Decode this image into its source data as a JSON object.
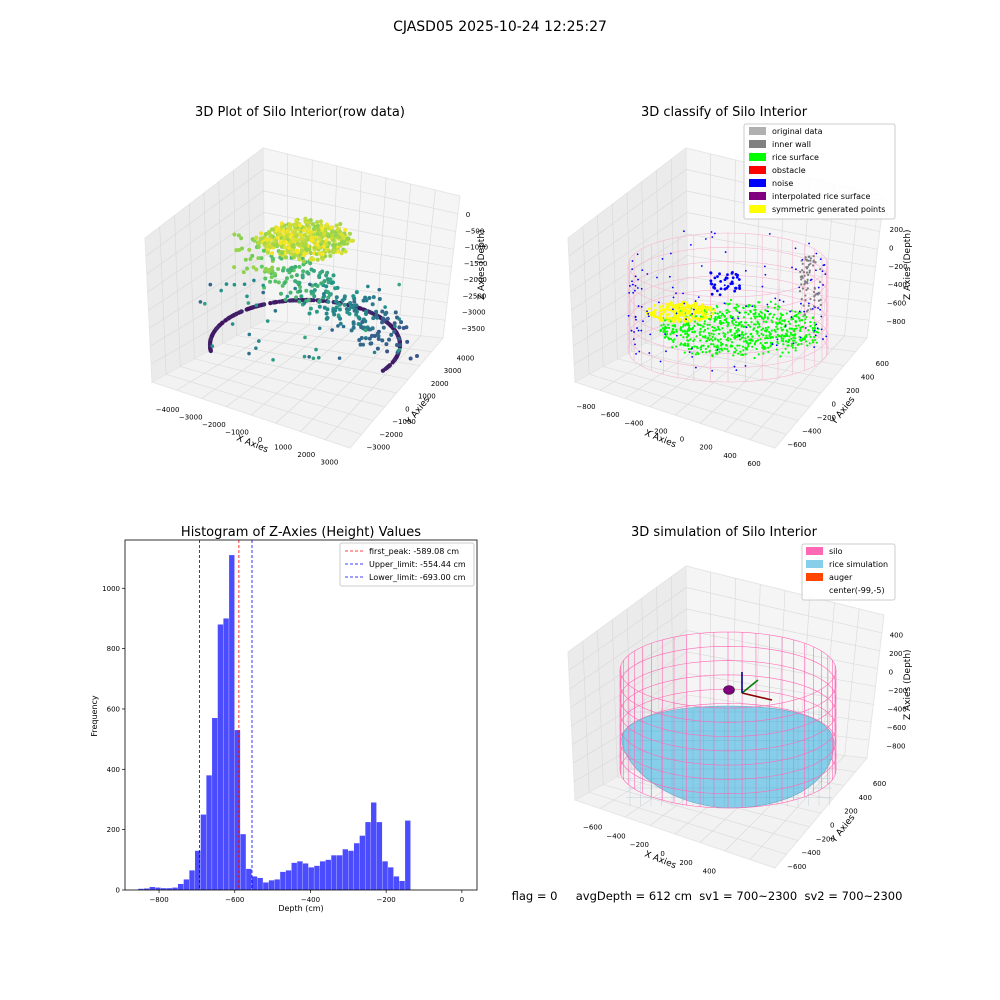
{
  "suptitle": "CJASD05 2025-10-24 12:25:27",
  "status_line": "flag = 0     avgDepth = 612 cm  sv1 = 700~2300  sv2 = 700~2300",
  "colors": {
    "hist_bar": "#0000ff",
    "first_peak": "#ff0000",
    "limits": "#0000ff",
    "silo": "#ff69b4",
    "rice_simulation": "#87ceeb",
    "auger": "#ff4500",
    "original_data": "#b0b0b0",
    "inner_wall": "#808080",
    "rice_surface": "#00ff00",
    "obstacle": "#ff0000",
    "noise": "#0000ff",
    "interpolated_rice_surface": "#800080",
    "symmetric_generated_points": "#ffff00"
  },
  "chart_data": [
    {
      "type": "scatter",
      "projection": "3d",
      "title": "3D Plot of Silo Interior(row data)",
      "xlabel": "X Axies",
      "ylabel": "Y Axies",
      "zlabel": "Z Axies (Depth)",
      "xticks": [
        "−4000",
        "−3000",
        "−2000",
        "−1000",
        "0",
        "1000",
        "2000",
        "3000"
      ],
      "yticks": [
        "−3000",
        "−2000",
        "−1000",
        "0",
        "1000",
        "2000",
        "3000",
        "4000"
      ],
      "zticks": [
        "0",
        "−500",
        "−1000",
        "−1500",
        "−2000",
        "−2500",
        "−3000",
        "−3500"
      ],
      "colormap": "viridis",
      "grid": true
    },
    {
      "type": "scatter",
      "projection": "3d",
      "title": "3D classify of Silo Interior",
      "xlabel": "X Axies",
      "ylabel": "Y Axies",
      "zlabel": "Z Axies (Depth)",
      "xticks": [
        "−800",
        "−600",
        "−400",
        "−200",
        "0",
        "200",
        "400",
        "600"
      ],
      "yticks": [
        "−600",
        "−400",
        "−200",
        "0",
        "200",
        "400",
        "600"
      ],
      "zticks": [
        "200",
        "0",
        "−200",
        "−400",
        "−600",
        "−800"
      ],
      "legend_position": "top-right",
      "legend": [
        {
          "label": "original data",
          "color": "#b0b0b0"
        },
        {
          "label": "inner wall",
          "color": "#808080"
        },
        {
          "label": "rice surface",
          "color": "#00ff00"
        },
        {
          "label": "obstacle",
          "color": "#ff0000"
        },
        {
          "label": "noise",
          "color": "#0000ff"
        },
        {
          "label": "interpolated rice surface",
          "color": "#800080"
        },
        {
          "label": "symmetric generated points",
          "color": "#ffff00"
        }
      ],
      "grid": true
    },
    {
      "type": "bar",
      "title": "Histogram of Z-Axies (Height) Values",
      "xlabel": "Depth (cm)",
      "ylabel": "Frequency",
      "xlim": [
        -890,
        40
      ],
      "ylim": [
        0,
        1160
      ],
      "xticks": [
        -800,
        -600,
        -400,
        -200,
        0
      ],
      "yticks": [
        0,
        200,
        400,
        600,
        800,
        1000
      ],
      "bin_width": 15,
      "bins": [
        {
          "x": -855,
          "y": 4
        },
        {
          "x": -840,
          "y": 5
        },
        {
          "x": -825,
          "y": 10
        },
        {
          "x": -810,
          "y": 8
        },
        {
          "x": -795,
          "y": 6
        },
        {
          "x": -780,
          "y": 6
        },
        {
          "x": -765,
          "y": 8
        },
        {
          "x": -750,
          "y": 20
        },
        {
          "x": -735,
          "y": 35
        },
        {
          "x": -720,
          "y": 65
        },
        {
          "x": -705,
          "y": 130
        },
        {
          "x": -690,
          "y": 250
        },
        {
          "x": -675,
          "y": 380
        },
        {
          "x": -660,
          "y": 570
        },
        {
          "x": -645,
          "y": 880
        },
        {
          "x": -630,
          "y": 900
        },
        {
          "x": -615,
          "y": 1110
        },
        {
          "x": -600,
          "y": 530
        },
        {
          "x": -585,
          "y": 185
        },
        {
          "x": -570,
          "y": 70
        },
        {
          "x": -555,
          "y": 45
        },
        {
          "x": -540,
          "y": 40
        },
        {
          "x": -525,
          "y": 25
        },
        {
          "x": -510,
          "y": 32
        },
        {
          "x": -495,
          "y": 35
        },
        {
          "x": -480,
          "y": 60
        },
        {
          "x": -465,
          "y": 65
        },
        {
          "x": -450,
          "y": 90
        },
        {
          "x": -435,
          "y": 95
        },
        {
          "x": -420,
          "y": 88
        },
        {
          "x": -405,
          "y": 75
        },
        {
          "x": -390,
          "y": 80
        },
        {
          "x": -375,
          "y": 95
        },
        {
          "x": -360,
          "y": 100
        },
        {
          "x": -345,
          "y": 115
        },
        {
          "x": -330,
          "y": 115
        },
        {
          "x": -315,
          "y": 135
        },
        {
          "x": -300,
          "y": 130
        },
        {
          "x": -285,
          "y": 155
        },
        {
          "x": -270,
          "y": 180
        },
        {
          "x": -255,
          "y": 225
        },
        {
          "x": -240,
          "y": 290
        },
        {
          "x": -225,
          "y": 225
        },
        {
          "x": -210,
          "y": 95
        },
        {
          "x": -195,
          "y": 75
        },
        {
          "x": -180,
          "y": 45
        },
        {
          "x": -165,
          "y": 30
        },
        {
          "x": -150,
          "y": 230
        }
      ],
      "vlines": [
        {
          "label": "first_peak: -589.08 cm",
          "x": -589.08,
          "color": "#ff0000"
        },
        {
          "label": "Upper_limit: -554.44 cm",
          "x": -554.44,
          "color": "#0000ff"
        },
        {
          "label": "Lower_limit: -693.00 cm",
          "x": -693.0,
          "color": "#0000ff"
        }
      ],
      "legend_position": "top-right",
      "grid": false
    },
    {
      "type": "surface",
      "projection": "3d",
      "title": "3D simulation of Silo Interior",
      "xlabel": "X Axies",
      "ylabel": "Y Axies",
      "zlabel": "Z Axies (Depth)",
      "xticks": [
        "−600",
        "−400",
        "−200",
        "0",
        "200",
        "400"
      ],
      "yticks": [
        "−600",
        "−400",
        "−200",
        "0",
        "200",
        "400",
        "600"
      ],
      "zticks": [
        "400",
        "200",
        "0",
        "−200",
        "−400",
        "−600",
        "−800"
      ],
      "legend_position": "top-right",
      "legend": [
        {
          "label": "silo",
          "color": "#ff69b4"
        },
        {
          "label": "rice simulation",
          "color": "#87ceeb"
        },
        {
          "label": "auger",
          "color": "#ff4500"
        },
        {
          "label": "center(-99,-5)",
          "color": ""
        }
      ],
      "grid": true
    }
  ]
}
